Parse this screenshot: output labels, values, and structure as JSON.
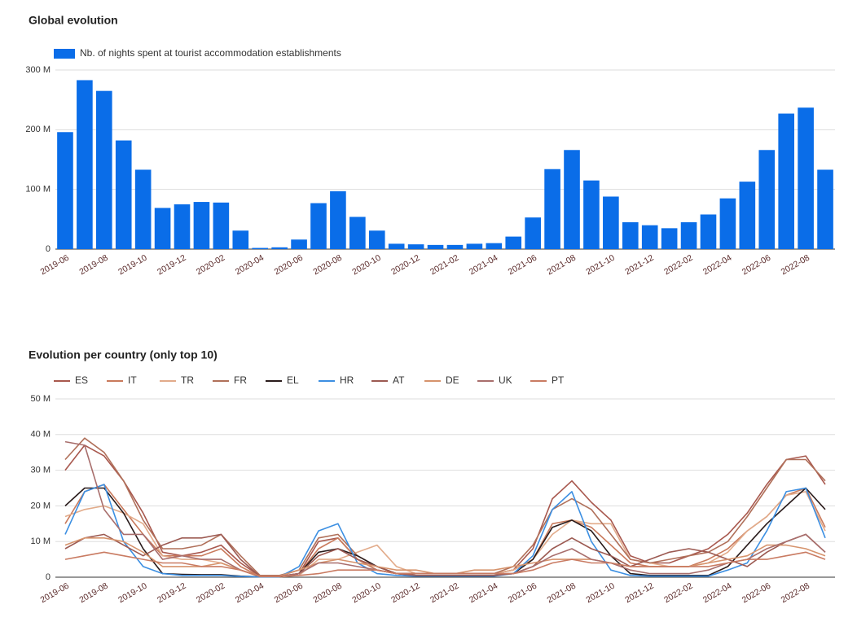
{
  "chart_data": [
    {
      "type": "bar",
      "title": "Global evolution",
      "categories": [
        "2019-06",
        null,
        "2019-08",
        null,
        "2019-10",
        null,
        "2019-12",
        null,
        "2020-02",
        null,
        "2020-04",
        null,
        "2020-06",
        null,
        "2020-08",
        null,
        "2020-10",
        null,
        "2020-12",
        null,
        "2021-02",
        null,
        "2021-04",
        null,
        "2021-06",
        null,
        "2021-08",
        null,
        "2021-10",
        null,
        "2021-12",
        null,
        "2022-02",
        null,
        "2022-04",
        null,
        "2022-06",
        null,
        "2022-08",
        null
      ],
      "series": [
        {
          "name": "Nb. of nights spent at tourist accommodation establishments",
          "color": "#0a6de8",
          "values": [
            196,
            283,
            265,
            182,
            133,
            69,
            75,
            79,
            78,
            31,
            2,
            3,
            16,
            77,
            97,
            54,
            31,
            9,
            8,
            7,
            7,
            9,
            10,
            21,
            53,
            134,
            166,
            115,
            88,
            45,
            40,
            35,
            45,
            58,
            85,
            113,
            166,
            227,
            237,
            133
          ]
        }
      ],
      "ylim": [
        0,
        300
      ],
      "yticks": [
        0,
        {
          "value": 100,
          "label": "100 M"
        },
        {
          "value": 200,
          "label": "200 M"
        },
        {
          "value": 300,
          "label": "300 M"
        }
      ],
      "grid": true
    },
    {
      "type": "line",
      "title": "Evolution per country (only top 10)",
      "categories": [
        "2019-06",
        null,
        "2019-08",
        null,
        "2019-10",
        null,
        "2019-12",
        null,
        "2020-02",
        null,
        "2020-04",
        null,
        "2020-06",
        null,
        "2020-08",
        null,
        "2020-10",
        null,
        "2020-12",
        null,
        "2021-02",
        null,
        "2021-04",
        null,
        "2021-06",
        null,
        "2021-08",
        null,
        "2021-10",
        null,
        "2021-12",
        null,
        "2022-02",
        null,
        "2022-04",
        null,
        "2022-06",
        null,
        "2022-08",
        null
      ],
      "series": [
        {
          "name": "ES",
          "color": "#a8584e",
          "values": [
            30,
            37,
            34,
            27,
            18,
            7,
            6,
            7,
            9,
            4,
            0.3,
            0.3,
            1,
            10,
            11,
            5,
            2,
            1,
            1,
            1,
            1,
            1,
            1,
            2,
            8,
            22,
            27,
            21,
            16,
            6,
            4,
            4,
            6,
            8,
            12,
            18,
            26,
            33,
            34,
            26
          ]
        },
        {
          "name": "IT",
          "color": "#c97a5c",
          "values": [
            15,
            24,
            26,
            19,
            12,
            6,
            6,
            6,
            8,
            3,
            0.2,
            0.2,
            1,
            8,
            11,
            5,
            2,
            1,
            1,
            1,
            1,
            1,
            1,
            2,
            5,
            15,
            16,
            14,
            9,
            4,
            3,
            3,
            3,
            5,
            8,
            13,
            17,
            23,
            25,
            14
          ]
        },
        {
          "name": "TR",
          "color": "#e2ab8a",
          "values": [
            17,
            19,
            20,
            18,
            15,
            6,
            5,
            5,
            4,
            2,
            0.1,
            0.1,
            0.5,
            5,
            5,
            7,
            9,
            3,
            1,
            1,
            1,
            1,
            1,
            2,
            5,
            12,
            16,
            15,
            15,
            5,
            4,
            3,
            3,
            4,
            7,
            13,
            17,
            23,
            24,
            13
          ]
        },
        {
          "name": "FR",
          "color": "#b0705a",
          "values": [
            33,
            39,
            35,
            27,
            16,
            8,
            8,
            9,
            12,
            6,
            0.5,
            0.5,
            2,
            11,
            12,
            6,
            3,
            1,
            1,
            1,
            1,
            1,
            1,
            3,
            9,
            19,
            22,
            19,
            12,
            5,
            4,
            5,
            6,
            7,
            10,
            17,
            25,
            33,
            33,
            27
          ]
        },
        {
          "name": "EL",
          "color": "#2a1c1c",
          "values": [
            20,
            25,
            25,
            18,
            8,
            1,
            0.8,
            0.7,
            0.7,
            0.3,
            0.1,
            0.1,
            1,
            7,
            8,
            6,
            3,
            1,
            0.5,
            0.5,
            0.5,
            0.5,
            0.5,
            1,
            5,
            14,
            16,
            13,
            6,
            1,
            0.5,
            0.5,
            0.5,
            0.5,
            3,
            9,
            15,
            20,
            25,
            19
          ]
        },
        {
          "name": "HR",
          "color": "#3c8fe2",
          "values": [
            12,
            24,
            26,
            10,
            3,
            1,
            0.5,
            0.5,
            0.5,
            0.2,
            0.1,
            0.1,
            3,
            13,
            15,
            4,
            1,
            0.5,
            0.3,
            0.3,
            0.3,
            0.3,
            0.3,
            1,
            6,
            19,
            24,
            10,
            2,
            0.5,
            0.3,
            0.3,
            0.3,
            0.3,
            2,
            4,
            13,
            24,
            25,
            11
          ]
        },
        {
          "name": "AT",
          "color": "#9c5a52",
          "values": [
            8,
            11,
            12,
            9,
            6,
            9,
            11,
            11,
            12,
            5,
            0.2,
            0.2,
            1,
            6,
            8,
            5,
            3,
            1,
            0.5,
            0.5,
            0.5,
            0.5,
            0.5,
            1,
            3,
            8,
            11,
            8,
            6,
            3,
            5,
            7,
            8,
            7,
            5,
            3,
            7,
            10,
            12,
            7
          ]
        },
        {
          "name": "DE",
          "color": "#d6936c",
          "values": [
            9,
            11,
            11,
            10,
            7,
            3,
            3,
            3,
            4,
            2,
            0.3,
            0.3,
            2,
            4,
            5,
            4,
            3,
            2,
            2,
            1,
            1,
            2,
            2,
            3,
            4,
            5,
            5,
            5,
            4,
            3,
            3,
            3,
            3,
            4,
            5,
            6,
            9,
            9,
            8,
            6
          ]
        },
        {
          "name": "UK",
          "color": "#a86e6c",
          "values": [
            38,
            37,
            19,
            12,
            12,
            5,
            6,
            5,
            5,
            2,
            0.2,
            0.2,
            1,
            4,
            4,
            3,
            2,
            1,
            1,
            1,
            1,
            1,
            1,
            1,
            3,
            6,
            8,
            5,
            4,
            2,
            1,
            1,
            1,
            2,
            4,
            5,
            8,
            10,
            12,
            7
          ]
        },
        {
          "name": "PT",
          "color": "#c97b62",
          "values": [
            5,
            6,
            7,
            6,
            5,
            4,
            4,
            3,
            3,
            2,
            0.2,
            0.2,
            0.5,
            1,
            2,
            2,
            2,
            1,
            1,
            1,
            1,
            1,
            1,
            1,
            2,
            4,
            5,
            4,
            4,
            3,
            3,
            3,
            3,
            3,
            4,
            5,
            5,
            6,
            7,
            5
          ]
        }
      ],
      "ylim": [
        0,
        50
      ],
      "yticks": [
        0,
        {
          "value": 10,
          "label": "10 M"
        },
        {
          "value": 20,
          "label": "20 M"
        },
        {
          "value": 30,
          "label": "30 M"
        },
        {
          "value": 40,
          "label": "40 M"
        },
        {
          "value": 50,
          "label": "50 M"
        }
      ],
      "grid": true
    }
  ]
}
